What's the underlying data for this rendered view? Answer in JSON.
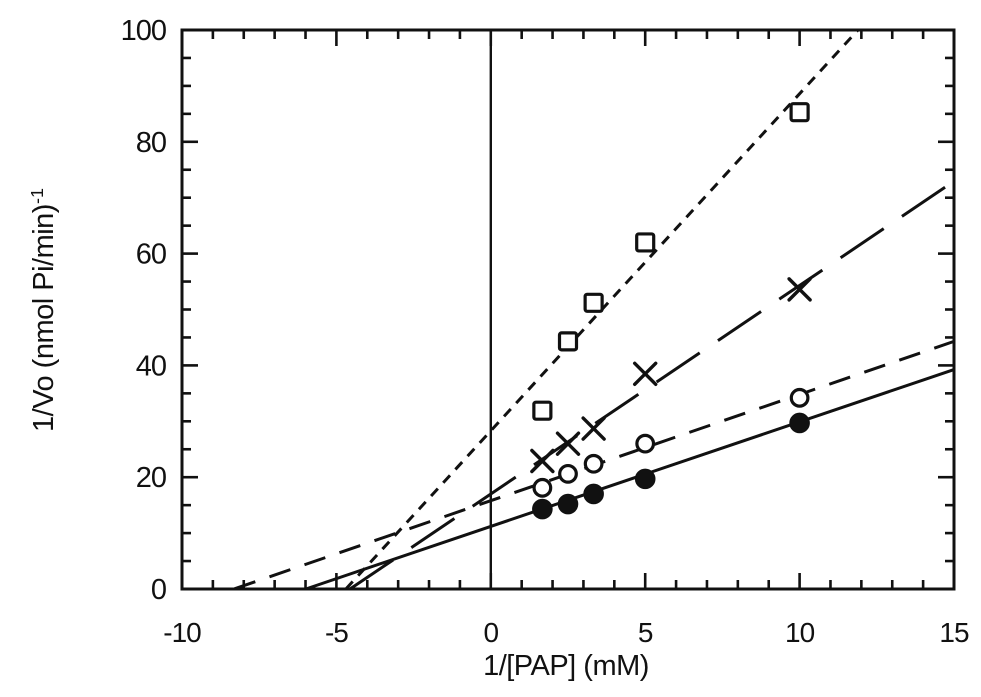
{
  "chart_data": {
    "type": "scatter",
    "title": "",
    "xlabel": "1/[PAP] (mM)",
    "ylabel": "1/Vo (nmol Pi/min)",
    "ylabel_superscript": "-1",
    "xlim": [
      -10,
      15
    ],
    "ylim": [
      0,
      100
    ],
    "x_major_ticks": [
      -10,
      -5,
      0,
      5,
      10,
      15
    ],
    "x_minor_step": 1,
    "y_major_ticks": [
      0,
      20,
      40,
      60,
      80,
      100
    ],
    "y_minor_step": 5,
    "zero_line_x": 0,
    "grid": false,
    "legend": "none",
    "colors": {
      "ink": "#111111",
      "background": "#ffffff"
    },
    "x_shared": [
      1.67,
      2.5,
      3.33,
      5,
      10
    ],
    "series": [
      {
        "name": "open-square",
        "marker": "square",
        "marker_fill": "open",
        "line_dash": "short",
        "y": [
          31.9,
          44.3,
          51.2,
          62.0,
          85.3
        ],
        "fit_line": {
          "intercept": 28.3,
          "slope": 6.03,
          "x_start": -4.69,
          "x_end": 11.89
        }
      },
      {
        "name": "x-mark",
        "marker": "x",
        "marker_fill": "none",
        "line_dash": "long",
        "y": [
          22.9,
          26.0,
          28.7,
          38.5,
          53.6
        ],
        "fit_line": {
          "intercept": 17.0,
          "slope": 3.73,
          "x_start": -4.56,
          "x_end": 15
        }
      },
      {
        "name": "open-circle",
        "marker": "circle",
        "marker_fill": "open",
        "line_dash": "medium",
        "y": [
          18.1,
          20.6,
          22.4,
          26.0,
          34.2
        ],
        "fit_line": {
          "intercept": 15.8,
          "slope": 1.9,
          "x_start": -8.3,
          "x_end": 15
        }
      },
      {
        "name": "filled-circle",
        "marker": "circle",
        "marker_fill": "filled",
        "line_dash": "solid",
        "y": [
          14.3,
          15.2,
          17.0,
          19.7,
          29.7
        ],
        "fit_line": {
          "intercept": 11.2,
          "slope": 1.87,
          "x_start": -5.99,
          "x_end": 15
        }
      }
    ]
  }
}
